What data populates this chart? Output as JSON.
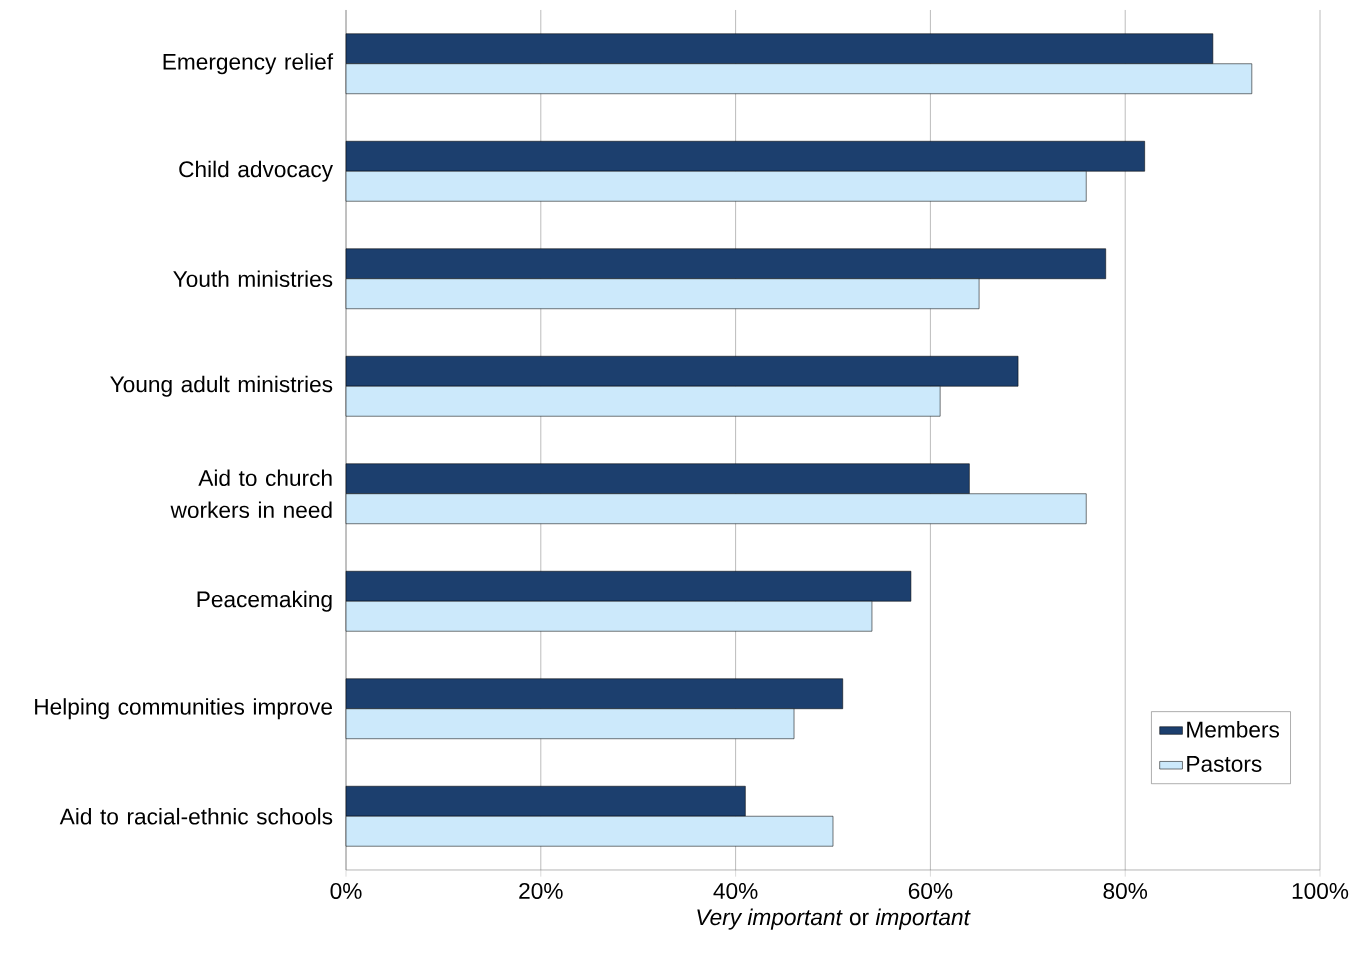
{
  "chart_data": {
    "type": "bar",
    "orientation": "horizontal",
    "categories": [
      "Emergency relief",
      "Child advocacy",
      "Youth ministries",
      "Young adult ministries",
      "Aid to church workers in need",
      "Peacemaking",
      "Helping communities improve",
      "Aid to racial-ethnic schools"
    ],
    "series": [
      {
        "name": "Members",
        "color": "#1c3f6e",
        "values": [
          89,
          82,
          78,
          69,
          64,
          58,
          51,
          41
        ]
      },
      {
        "name": "Pastors",
        "color": "#cce9fb",
        "values": [
          93,
          76,
          65,
          61,
          76,
          54,
          46,
          50
        ]
      }
    ],
    "xlabel": "*Very important* or *important*",
    "xlim": [
      0,
      100
    ],
    "xticks": [
      {
        "value": 0,
        "label": "0%"
      },
      {
        "value": 20,
        "label": "20%"
      },
      {
        "value": 40,
        "label": "40%"
      },
      {
        "value": 60,
        "label": "60%"
      },
      {
        "value": 80,
        "label": "80%"
      },
      {
        "value": 100,
        "label": "100%"
      }
    ],
    "grid": "x",
    "legend": "bottom right"
  }
}
